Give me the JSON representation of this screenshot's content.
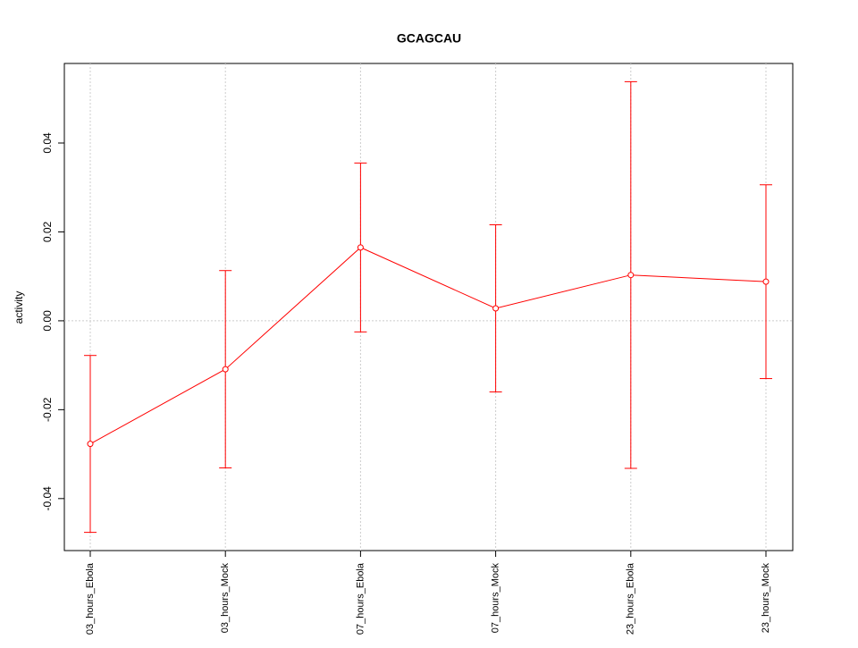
{
  "chart_data": {
    "type": "line",
    "title": "GCAGCAU",
    "ylabel": "activity",
    "categories": [
      "03_hours_Ebola",
      "03_hours_Mock",
      "07_hours_Ebola",
      "07_hours_Mock",
      "23_hours_Ebola",
      "23_hours_Mock"
    ],
    "series": [
      {
        "color": "#ff0000",
        "values": [
          -0.0277,
          -0.0109,
          0.0165,
          0.0028,
          0.0103,
          0.0088
        ],
        "errors": [
          0.0199,
          0.0222,
          0.019,
          0.0188,
          0.0435,
          0.0218
        ]
      }
    ],
    "ylim": [
      -0.0517,
      0.0579
    ],
    "yticks": [
      -0.04,
      -0.02,
      {
        "value": 0,
        "label": "0.00"
      },
      0.02,
      0.04
    ],
    "hline": 0,
    "grid": true
  }
}
